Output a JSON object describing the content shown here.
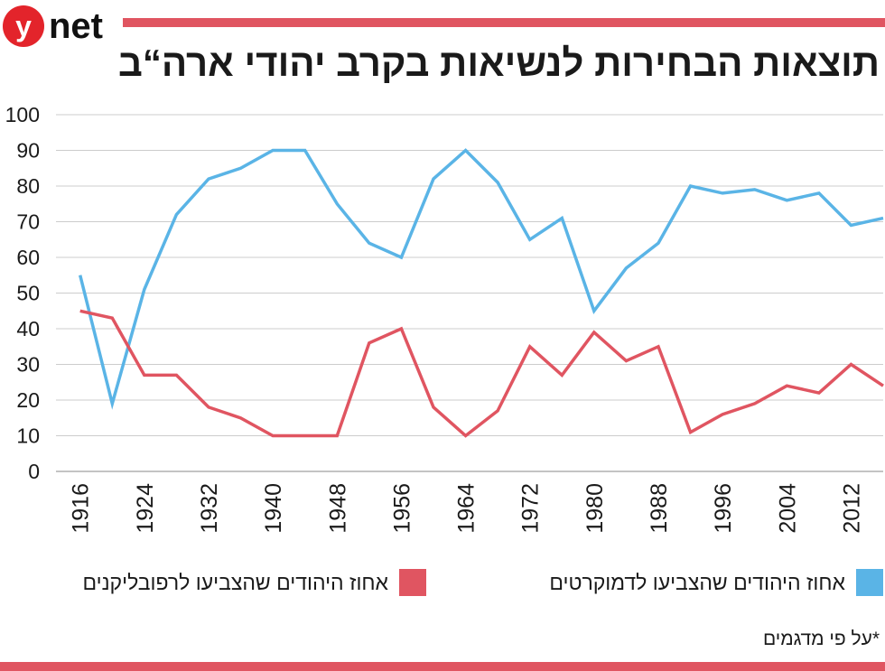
{
  "brand": {
    "logo_letter": "y",
    "logo_text": "net",
    "accent_color": "#e05561"
  },
  "title": "תוצאות הבחירות לנשיאות בקרב יהודי ארה“ב",
  "chart_data": {
    "type": "line",
    "title": "תוצאות הבחירות לנשיאות בקרב יהודי ארה“ב",
    "xlabel": "",
    "ylabel": "",
    "ylim": [
      0,
      100
    ],
    "xlim": [
      1913,
      2016
    ],
    "y_ticks": [
      0,
      10,
      20,
      30,
      40,
      50,
      60,
      70,
      80,
      90,
      100
    ],
    "x_ticks": [
      1916,
      1924,
      1932,
      1940,
      1948,
      1956,
      1964,
      1972,
      1980,
      1988,
      1996,
      2004,
      2012
    ],
    "grid": "horizontal",
    "series": [
      {
        "name": "אחוז היהודים שהצביעו לדמוקרטים",
        "color": "#5ab4e6",
        "x": [
          1916,
          1920,
          1924,
          1928,
          1932,
          1936,
          1940,
          1944,
          1948,
          1952,
          1956,
          1960,
          1964,
          1968,
          1972,
          1976,
          1980,
          1984,
          1988,
          1992,
          1996,
          2000,
          2004,
          2008,
          2012,
          2016
        ],
        "values": [
          55,
          19,
          51,
          72,
          82,
          85,
          90,
          90,
          75,
          64,
          60,
          82,
          90,
          81,
          65,
          71,
          45,
          57,
          64,
          80,
          78,
          79,
          76,
          78,
          69,
          71
        ]
      },
      {
        "name": "אחוז היהודים שהצביעו לרפובליקנים",
        "color": "#e05561",
        "x": [
          1916,
          1920,
          1924,
          1928,
          1932,
          1936,
          1940,
          1944,
          1948,
          1952,
          1956,
          1960,
          1964,
          1968,
          1972,
          1976,
          1980,
          1984,
          1988,
          1992,
          1996,
          2000,
          2004,
          2008,
          2012,
          2016
        ],
        "values": [
          45,
          43,
          27,
          27,
          18,
          15,
          10,
          10,
          10,
          36,
          40,
          18,
          10,
          17,
          35,
          27,
          39,
          31,
          35,
          11,
          16,
          19,
          24,
          22,
          30,
          24
        ]
      }
    ],
    "legend": "bottom"
  },
  "legend": {
    "dem_label": "אחוז היהודים שהצביעו לדמוקרטים",
    "rep_label": "אחוז היהודים שהצביעו לרפובליקנים",
    "dem_color": "#5ab4e6",
    "rep_color": "#e05561"
  },
  "footnote": "*על פי מדגמים"
}
